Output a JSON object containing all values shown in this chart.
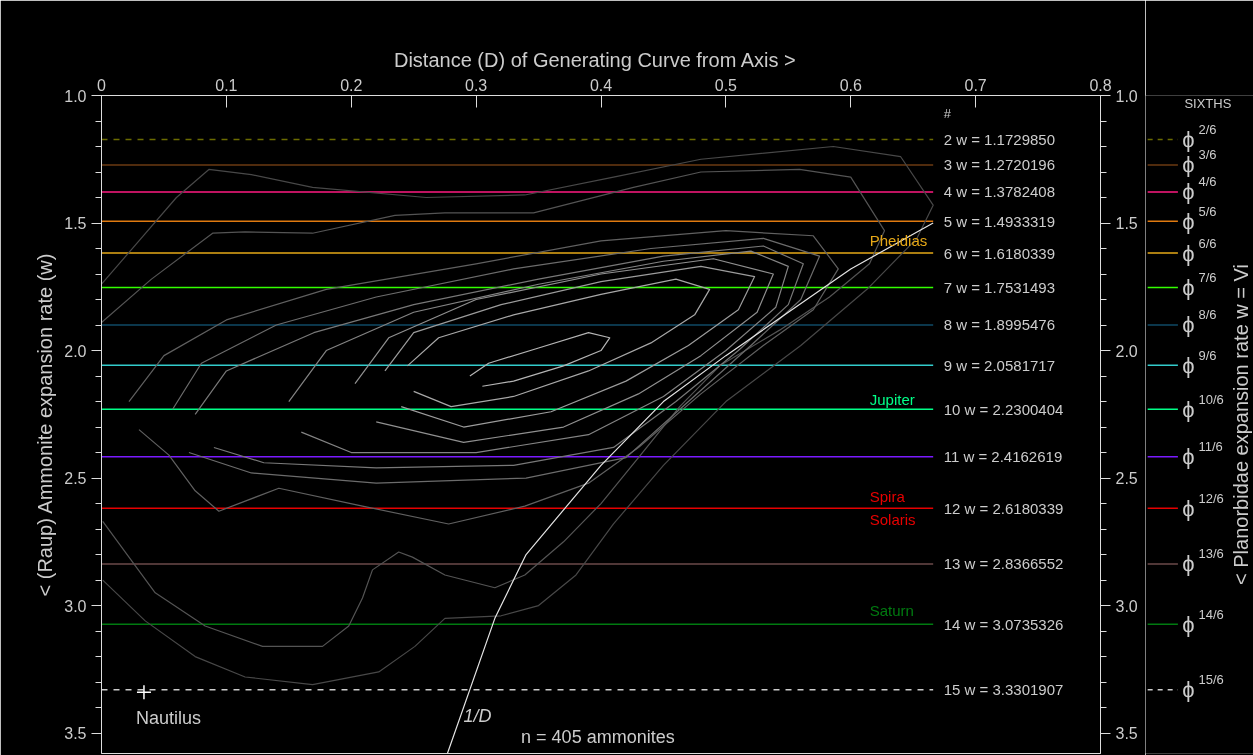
{
  "chart_data": {
    "type": "line",
    "xlabel": "Distance  (D) of Generating Curve from Axis  >",
    "ylabel": "< (Raup) Ammonite expansion rate (w)",
    "y2label": "< Planorbidae expansion rate w = Vi",
    "xlim": [
      0,
      0.8
    ],
    "xticks": [
      0,
      0.1,
      0.2,
      0.3,
      0.4,
      0.5,
      0.6,
      0.7,
      0.8
    ],
    "ylim": [
      3.58,
      1.0
    ],
    "yticks": [
      {
        "value": 1.0,
        "label": "1.0"
      },
      {
        "value": 1.1,
        "label": null
      },
      {
        "value": 1.2,
        "label": null
      },
      {
        "value": 1.3,
        "label": null
      },
      {
        "value": 1.4,
        "label": null
      },
      {
        "value": 1.5,
        "label": "1.5"
      },
      {
        "value": 1.6,
        "label": null
      },
      {
        "value": 1.7,
        "label": null
      },
      {
        "value": 1.8,
        "label": null
      },
      {
        "value": 1.9,
        "label": null
      },
      {
        "value": 2.0,
        "label": "2.0"
      },
      {
        "value": 2.1,
        "label": null
      },
      {
        "value": 2.2,
        "label": null
      },
      {
        "value": 2.3,
        "label": null
      },
      {
        "value": 2.4,
        "label": null
      },
      {
        "value": 2.5,
        "label": "2.5"
      },
      {
        "value": 2.6,
        "label": null
      },
      {
        "value": 2.7,
        "label": null
      },
      {
        "value": 2.8,
        "label": null
      },
      {
        "value": 2.9,
        "label": null
      },
      {
        "value": 3.0,
        "label": "3.0"
      },
      {
        "value": 3.1,
        "label": null
      },
      {
        "value": 3.2,
        "label": null
      },
      {
        "value": 3.3,
        "label": null
      },
      {
        "value": 3.4,
        "label": null
      },
      {
        "value": 3.5,
        "label": "3.5"
      }
    ],
    "y2lim": [
      3.58,
      1.0
    ],
    "y2ticks": [
      {
        "value": 1.0,
        "label": "1.0"
      },
      {
        "value": 1.1,
        "label": null
      },
      {
        "value": 1.2,
        "label": null
      },
      {
        "value": 1.3,
        "label": null
      },
      {
        "value": 1.4,
        "label": null
      },
      {
        "value": 1.5,
        "label": "1.5"
      },
      {
        "value": 1.6,
        "label": null
      },
      {
        "value": 1.7,
        "label": null
      },
      {
        "value": 1.8,
        "label": null
      },
      {
        "value": 1.9,
        "label": null
      },
      {
        "value": 2.0,
        "label": "2.0"
      },
      {
        "value": 2.1,
        "label": null
      },
      {
        "value": 2.2,
        "label": null
      },
      {
        "value": 2.3,
        "label": null
      },
      {
        "value": 2.4,
        "label": null
      },
      {
        "value": 2.5,
        "label": "2.5"
      },
      {
        "value": 2.6,
        "label": null
      },
      {
        "value": 2.7,
        "label": null
      },
      {
        "value": 2.8,
        "label": null
      },
      {
        "value": 2.9,
        "label": null
      },
      {
        "value": 3.0,
        "label": "3.0"
      },
      {
        "value": 3.1,
        "label": null
      },
      {
        "value": 3.2,
        "label": null
      },
      {
        "value": 3.3,
        "label": null
      },
      {
        "value": 3.4,
        "label": null
      },
      {
        "value": 3.5,
        "label": "3.5"
      }
    ],
    "ref_lines": [
      {
        "axis": "y",
        "value": 1.172985,
        "label": "2   w = 1.1729850",
        "color": "#6b6b00",
        "line_style": "dashed"
      },
      {
        "axis": "y",
        "value": 1.2720196,
        "label": "3   w = 1.2720196",
        "color": "#6b3a12",
        "line_style": "solid"
      },
      {
        "axis": "y",
        "value": 1.3782408,
        "label": "4   w = 1.3782408",
        "color": "#ff1a80",
        "line_style": "solid"
      },
      {
        "axis": "y",
        "value": 1.4933319,
        "label": "5   w = 1.4933319",
        "color": "#e07a10",
        "line_style": "solid"
      },
      {
        "axis": "y",
        "value": 1.6180339,
        "label": "6   w = 1.6180339",
        "color": "#e6a817",
        "line_style": "solid"
      },
      {
        "axis": "y",
        "value": 1.7531493,
        "label": "7   w = 1.7531493",
        "color": "#33ff00",
        "line_style": "solid"
      },
      {
        "axis": "y",
        "value": 1.8995476,
        "label": "8   w = 1.8995476",
        "color": "#0f4a66",
        "line_style": "solid"
      },
      {
        "axis": "y",
        "value": 2.0581717,
        "label": "9   w = 2.0581717",
        "color": "#33cccc",
        "line_style": "solid"
      },
      {
        "axis": "y",
        "value": 2.2300404,
        "label": "10   w = 2.2300404",
        "color": "#00ff88",
        "line_style": "solid"
      },
      {
        "axis": "y",
        "value": 2.4162619,
        "label": "11   w = 2.4162619",
        "color": "#7a1aff",
        "line_style": "solid"
      },
      {
        "axis": "y",
        "value": 2.6180339,
        "label": "12   w = 2.6180339",
        "color": "#e60000",
        "line_style": "solid"
      },
      {
        "axis": "y",
        "value": 2.8366552,
        "label": "13   w = 2.8366552",
        "color": "#6b4a4a",
        "line_style": "solid"
      },
      {
        "axis": "y",
        "value": 3.0735326,
        "label": "14   w = 3.0735326",
        "color": "#007a10",
        "line_style": "solid"
      },
      {
        "axis": "y",
        "value": 3.3301907,
        "label": "15   w = 3.3301907",
        "color": "#cccccc",
        "line_style": "dashed"
      }
    ],
    "annotations": [
      "#",
      "SIXTHS",
      "n = 405 ammonites",
      "Pheidias",
      "Jupiter",
      "Spira",
      "Solaris",
      "Saturn",
      "ϕ$^{2/6}$",
      "ϕ$^{3/6}$",
      "ϕ$^{4/6}$",
      "ϕ$^{5/6}$",
      "ϕ$^{6/6}$",
      "ϕ$^{7/6}$",
      "ϕ$^{8/6}$",
      "ϕ$^{9/6}$",
      "ϕ$^{10/6}$",
      "ϕ$^{11/6}$",
      "ϕ$^{12/6}$",
      "ϕ$^{13/6}$",
      "ϕ$^{14/6}$",
      "ϕ$^{15/6}$"
    ],
    "series": [
      {
        "color": "#484848",
        "x": [
          0,
          0.03,
          0.06,
          0.086,
          0.12,
          0.169,
          0.26,
          0.339,
          0.41,
          0.48,
          0.586,
          0.64,
          0.666,
          0.653,
          0.613,
          0.56,
          0.5,
          0.45,
          0.41,
          0.38,
          0.35,
          0.32,
          0.275,
          0.251,
          0.222,
          0.169,
          0.115,
          0.075,
          0.035,
          0.001
        ],
        "values": [
          1.74,
          1.57,
          1.4,
          1.29,
          1.31,
          1.36,
          1.4,
          1.39,
          1.32,
          1.25,
          1.2,
          1.24,
          1.43,
          1.56,
          1.76,
          1.98,
          2.2,
          2.45,
          2.68,
          2.88,
          3.0,
          3.04,
          3.05,
          3.16,
          3.26,
          3.31,
          3.28,
          3.2,
          3.06,
          2.9
        ]
      },
      {
        "color": "#545454",
        "x": [
          0,
          0.04,
          0.089,
          0.115,
          0.169,
          0.235,
          0.275,
          0.346,
          0.426,
          0.48,
          0.559,
          0.6,
          0.627,
          0.615,
          0.583,
          0.543,
          0.495,
          0.463,
          0.43,
          0.4,
          0.37,
          0.339,
          0.315,
          0.275,
          0.249,
          0.238,
          0.217,
          0.209,
          0.198,
          0.177,
          0.129,
          0.083,
          0.043,
          0.001
        ],
        "values": [
          1.89,
          1.72,
          1.54,
          1.535,
          1.54,
          1.47,
          1.46,
          1.46,
          1.36,
          1.3,
          1.29,
          1.32,
          1.53,
          1.66,
          1.79,
          1.92,
          2.06,
          2.22,
          2.42,
          2.6,
          2.75,
          2.88,
          2.93,
          2.88,
          2.81,
          2.79,
          2.86,
          2.97,
          3.08,
          3.16,
          3.16,
          3.08,
          2.95,
          2.67
        ]
      },
      {
        "color": "#606060",
        "x": [
          0.022,
          0.05,
          0.1,
          0.18,
          0.3,
          0.4,
          0.5,
          0.57,
          0.59,
          0.57,
          0.53,
          0.48,
          0.43,
          0.39,
          0.339,
          0.278,
          0.209,
          0.142,
          0.094,
          0.075,
          0.054,
          0.03
        ],
        "values": [
          2.2,
          2.02,
          1.88,
          1.76,
          1.66,
          1.57,
          1.53,
          1.55,
          1.68,
          1.84,
          1.98,
          2.17,
          2.38,
          2.52,
          2.61,
          2.68,
          2.61,
          2.54,
          2.63,
          2.55,
          2.41,
          2.31
        ]
      },
      {
        "color": "#6c6c6c",
        "x": [
          0.057,
          0.08,
          0.14,
          0.22,
          0.33,
          0.44,
          0.53,
          0.575,
          0.56,
          0.52,
          0.47,
          0.42,
          0.34,
          0.22,
          0.12,
          0.07
        ],
        "values": [
          2.23,
          2.05,
          1.9,
          1.79,
          1.68,
          1.6,
          1.56,
          1.63,
          1.8,
          1.98,
          2.2,
          2.42,
          2.5,
          2.52,
          2.48,
          2.4
        ]
      },
      {
        "color": "#787878",
        "x": [
          0.075,
          0.1,
          0.17,
          0.25,
          0.35,
          0.45,
          0.53,
          0.562,
          0.55,
          0.51,
          0.46,
          0.41,
          0.33,
          0.22,
          0.13,
          0.09
        ],
        "values": [
          2.25,
          2.08,
          1.93,
          1.82,
          1.72,
          1.63,
          1.59,
          1.66,
          1.82,
          2.0,
          2.2,
          2.38,
          2.45,
          2.46,
          2.44,
          2.38
        ]
      },
      {
        "color": "#848484",
        "x": [
          0.15,
          0.18,
          0.25,
          0.35,
          0.45,
          0.52,
          0.55,
          0.54,
          0.5,
          0.45,
          0.39,
          0.3,
          0.2,
          0.16
        ],
        "values": [
          2.2,
          2.0,
          1.85,
          1.74,
          1.65,
          1.61,
          1.67,
          1.83,
          2.0,
          2.18,
          2.33,
          2.4,
          2.4,
          2.32
        ]
      },
      {
        "color": "#909090",
        "x": [
          0.203,
          0.23,
          0.3,
          0.4,
          0.49,
          0.538,
          0.525,
          0.48,
          0.43,
          0.37,
          0.29,
          0.22
        ],
        "values": [
          2.13,
          1.95,
          1.8,
          1.7,
          1.64,
          1.7,
          1.85,
          2.02,
          2.17,
          2.3,
          2.36,
          2.28
        ]
      },
      {
        "color": "#9c9c9c",
        "x": [
          0.227,
          0.25,
          0.32,
          0.4,
          0.48,
          0.523,
          0.51,
          0.47,
          0.42,
          0.36,
          0.29,
          0.24
        ],
        "values": [
          2.08,
          1.93,
          1.82,
          1.73,
          1.67,
          1.71,
          1.84,
          1.98,
          2.12,
          2.24,
          2.3,
          2.22
        ]
      },
      {
        "color": "#a8a8a8",
        "x": [
          0.245,
          0.27,
          0.33,
          0.4,
          0.46,
          0.487,
          0.475,
          0.44,
          0.39,
          0.33,
          0.28,
          0.25
        ],
        "values": [
          2.06,
          1.95,
          1.86,
          1.78,
          1.72,
          1.76,
          1.86,
          1.97,
          2.08,
          2.18,
          2.22,
          2.16
        ]
      },
      {
        "color": "#b4b4b4",
        "x": [
          0.295,
          0.31,
          0.35,
          0.39,
          0.407,
          0.4,
          0.37,
          0.33,
          0.305
        ],
        "values": [
          2.1,
          2.05,
          1.99,
          1.93,
          1.95,
          2.0,
          2.06,
          2.12,
          2.14
        ]
      },
      {
        "name": "1/D",
        "color": "#e4e4e4",
        "x": [
          0.277,
          0.315,
          0.34,
          0.4,
          0.45,
          0.5,
          0.55,
          0.6,
          0.666
        ],
        "values": [
          3.58,
          3.05,
          2.8,
          2.45,
          2.2,
          2.02,
          1.85,
          1.68,
          1.5
        ]
      },
      {
        "type": "scatter",
        "name": "Nautilus",
        "marker": "cross",
        "color": "#ffffff",
        "x": [
          0.034
        ],
        "values": [
          3.34
        ]
      }
    ]
  }
}
